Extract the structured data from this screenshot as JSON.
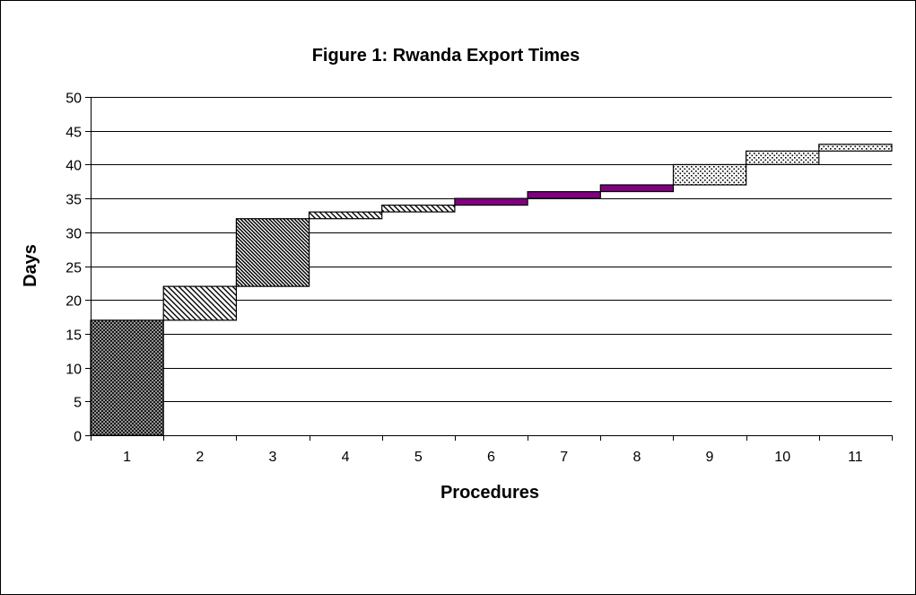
{
  "chart_data": {
    "type": "bar",
    "subtype": "waterfall-stacked",
    "title": "Figure 1: Rwanda Export Times",
    "xlabel": "Procedures",
    "ylabel": "Days",
    "categories": [
      "1",
      "2",
      "3",
      "4",
      "5",
      "6",
      "7",
      "8",
      "9",
      "10",
      "11"
    ],
    "base": [
      0,
      17,
      22,
      32,
      33,
      34,
      35,
      36,
      37,
      40,
      42
    ],
    "values": [
      17,
      5,
      10,
      1,
      1,
      1,
      1,
      1,
      3,
      2,
      1
    ],
    "patterns": [
      "crosshatch",
      "diagonal-light",
      "diagonal-dense",
      "diagonal-light",
      "diagonal-light",
      "solid",
      "solid",
      "solid",
      "dots",
      "dots",
      "dots"
    ],
    "colors": {
      "solid": "#800080",
      "pattern_ink": "#000000",
      "gridline": "#000000",
      "background": "#ffffff"
    },
    "ylim": [
      0,
      50
    ],
    "yticks": [
      "0",
      "5",
      "10",
      "15",
      "20",
      "25",
      "30",
      "35",
      "40",
      "45",
      "50"
    ],
    "grid": true,
    "legend": "none"
  }
}
